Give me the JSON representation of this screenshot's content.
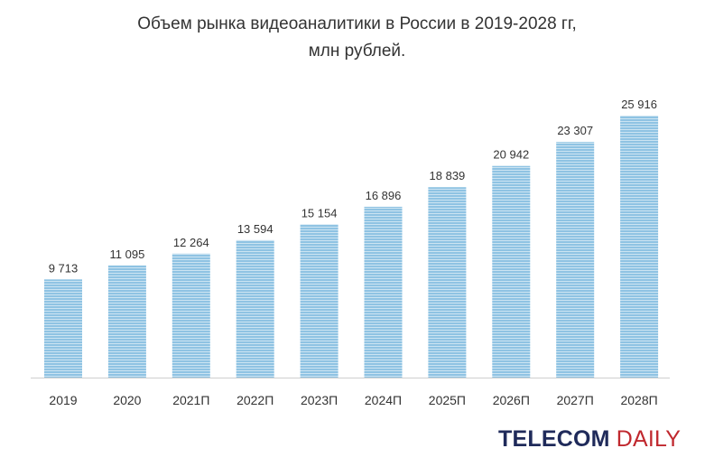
{
  "colors": {
    "bar": "#8fc3e3",
    "bar_stripe": "#ffffff",
    "axis": "#cfcfcf",
    "text": "#333333",
    "brand_dark": "#1f2a5a",
    "brand_red": "#c0282e"
  },
  "brand": {
    "part1": "TELECOM",
    "part2": "DAILY"
  },
  "chart_data": {
    "type": "bar",
    "title": "Объем рынка видеоаналитики в России в 2019-2028 гг,",
    "subtitle": "млн рублей.",
    "categories": [
      "2019",
      "2020",
      "2021П",
      "2022П",
      "2023П",
      "2024П",
      "2025П",
      "2026П",
      "2027П",
      "2028П"
    ],
    "values": [
      9713,
      11095,
      12264,
      13594,
      15154,
      16896,
      18839,
      20942,
      23307,
      25916
    ],
    "value_labels": [
      "9 713",
      "11 095",
      "12 264",
      "13 594",
      "15 154",
      "16 896",
      "18 839",
      "20 942",
      "23 307",
      "25 916"
    ],
    "ylim": [
      0,
      25916
    ],
    "grid": false,
    "legend": "none"
  }
}
